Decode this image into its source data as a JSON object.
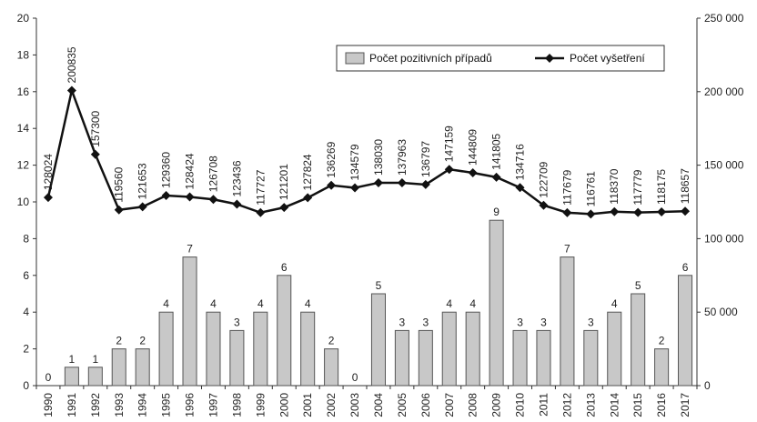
{
  "chart_data": {
    "type": "bar",
    "categories": [
      "1990",
      "1991",
      "1992",
      "1993",
      "1994",
      "1995",
      "1996",
      "1997",
      "1998",
      "1999",
      "2000",
      "2001",
      "2002",
      "2003",
      "2004",
      "2005",
      "2006",
      "2007",
      "2008",
      "2009",
      "2010",
      "2011",
      "2012",
      "2013",
      "2014",
      "2015",
      "2016",
      "2017"
    ],
    "series": [
      {
        "name": "Počet pozitivních případů",
        "type": "bar",
        "axis": "left",
        "values": [
          0,
          1,
          1,
          2,
          2,
          4,
          7,
          4,
          3,
          4,
          6,
          4,
          2,
          0,
          5,
          3,
          3,
          4,
          4,
          9,
          3,
          3,
          7,
          3,
          4,
          5,
          2,
          6
        ]
      },
      {
        "name": "Počet vyšetření",
        "type": "line",
        "axis": "right",
        "values": [
          128024,
          200835,
          157300,
          119560,
          121653,
          129360,
          128424,
          126708,
          123436,
          117727,
          121201,
          127824,
          136269,
          134579,
          138030,
          137963,
          136797,
          147159,
          144809,
          141805,
          134716,
          122709,
          117679,
          116761,
          118370,
          117779,
          118175,
          118657
        ]
      }
    ],
    "ylim_left": [
      0,
      20
    ],
    "ylim_right": [
      0,
      250000
    ],
    "left_ticks": [
      "0",
      "2",
      "4",
      "6",
      "8",
      "10",
      "12",
      "14",
      "16",
      "18",
      "20"
    ],
    "right_ticks": [
      "0",
      "50 000",
      "100 000",
      "150 000",
      "200 000",
      "250 000"
    ],
    "legend_position": "top-right",
    "grid": false,
    "colors": {
      "bar_fill": "#c8c8c8",
      "bar_stroke": "#555555",
      "line": "#111111",
      "axis": "#333333"
    }
  }
}
